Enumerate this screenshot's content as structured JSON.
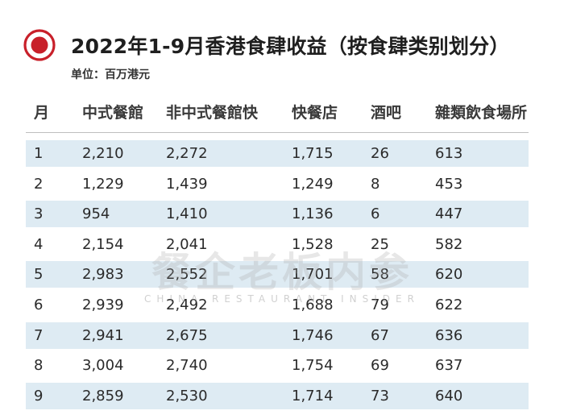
{
  "title": "2022年1-9月香港食肆收益（按食肆类别划分）",
  "unit": "单位：百万港元",
  "watermark": {
    "main": "餐企老板内参",
    "sub": "CHINA RESTAURANT INSIDER"
  },
  "colors": {
    "logo_red": "#c8202a",
    "row_shade": "#deebf3"
  },
  "chart_data": {
    "type": "table",
    "title": "2022年1-9月香港食肆收益（按食肆类别划分）",
    "unit": "单位：百万港元",
    "columns": [
      "月",
      "中式餐館",
      "非中式餐館快",
      "快餐店",
      "酒吧",
      "雜類飲食場所"
    ],
    "rows": [
      [
        "1",
        "2,210",
        "2,272",
        "1,715",
        "26",
        "613"
      ],
      [
        "2",
        "1,229",
        "1,439",
        "1,249",
        "8",
        "453"
      ],
      [
        "3",
        "954",
        "1,410",
        "1,136",
        "6",
        "447"
      ],
      [
        "4",
        "2,154",
        "2,041",
        "1,528",
        "25",
        "582"
      ],
      [
        "5",
        "2,983",
        "2,552",
        "1,701",
        "58",
        "620"
      ],
      [
        "6",
        "2,939",
        "2,492",
        "1,688",
        "79",
        "622"
      ],
      [
        "7",
        "2,941",
        "2,675",
        "1,746",
        "67",
        "636"
      ],
      [
        "8",
        "3,004",
        "2,740",
        "1,754",
        "69",
        "637"
      ],
      [
        "9",
        "2,859",
        "2,530",
        "1,714",
        "73",
        "640"
      ]
    ]
  }
}
